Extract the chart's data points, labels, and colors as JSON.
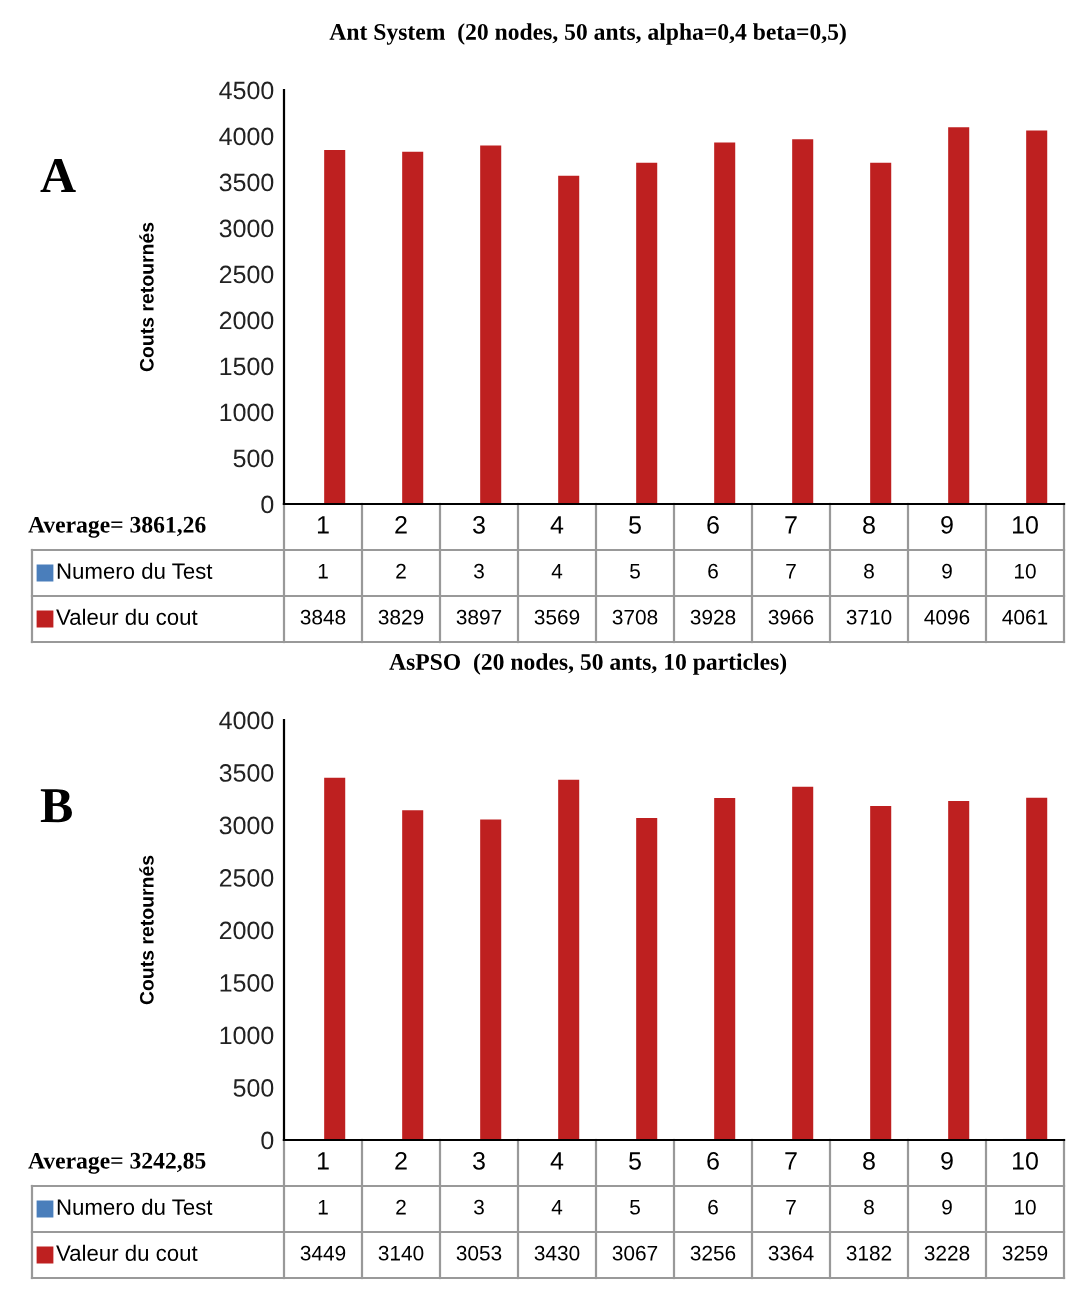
{
  "chart_data": [
    {
      "type": "bar",
      "title": "Ant System  (20 nodes, 50 ants, alpha=0,4 beta=0,5)",
      "ylabel": "Couts retournés",
      "categories": [
        "1",
        "2",
        "3",
        "4",
        "5",
        "6",
        "7",
        "8",
        "9",
        "10"
      ],
      "series": [
        {
          "name": "Numero du Test",
          "color": "#4a7ebb",
          "values": [
            1,
            2,
            3,
            4,
            5,
            6,
            7,
            8,
            9,
            10
          ]
        },
        {
          "name": "Valeur du cout",
          "color": "#be2020",
          "values": [
            3848,
            3829,
            3897,
            3569,
            3708,
            3928,
            3966,
            3710,
            4096,
            4061
          ]
        }
      ],
      "ylim": [
        0,
        4500
      ],
      "yticks": [
        0,
        500,
        1000,
        1500,
        2000,
        2500,
        3000,
        3500,
        4000,
        4500
      ],
      "grid": false,
      "legend": "bottom",
      "data_labels": true,
      "annotations": [
        "A",
        "Average= 3861,26"
      ]
    },
    {
      "type": "bar",
      "title": "AsPSO  (20 nodes, 50 ants, 10 particles)",
      "ylabel": "Couts retournés",
      "categories": [
        "1",
        "2",
        "3",
        "4",
        "5",
        "6",
        "7",
        "8",
        "9",
        "10"
      ],
      "series": [
        {
          "name": "Numero du Test",
          "color": "#4a7ebb",
          "values": [
            1,
            2,
            3,
            4,
            5,
            6,
            7,
            8,
            9,
            10
          ]
        },
        {
          "name": "Valeur du cout",
          "color": "#be2020",
          "values": [
            3449,
            3140,
            3053,
            3430,
            3067,
            3256,
            3364,
            3182,
            3228,
            3259
          ]
        }
      ],
      "ylim": [
        0,
        4000
      ],
      "yticks": [
        0,
        500,
        1000,
        1500,
        2000,
        2500,
        3000,
        3500,
        4000
      ],
      "grid": false,
      "legend": "bottom",
      "data_labels": true,
      "annotations": [
        "B",
        "Average= 3242,85"
      ]
    }
  ]
}
